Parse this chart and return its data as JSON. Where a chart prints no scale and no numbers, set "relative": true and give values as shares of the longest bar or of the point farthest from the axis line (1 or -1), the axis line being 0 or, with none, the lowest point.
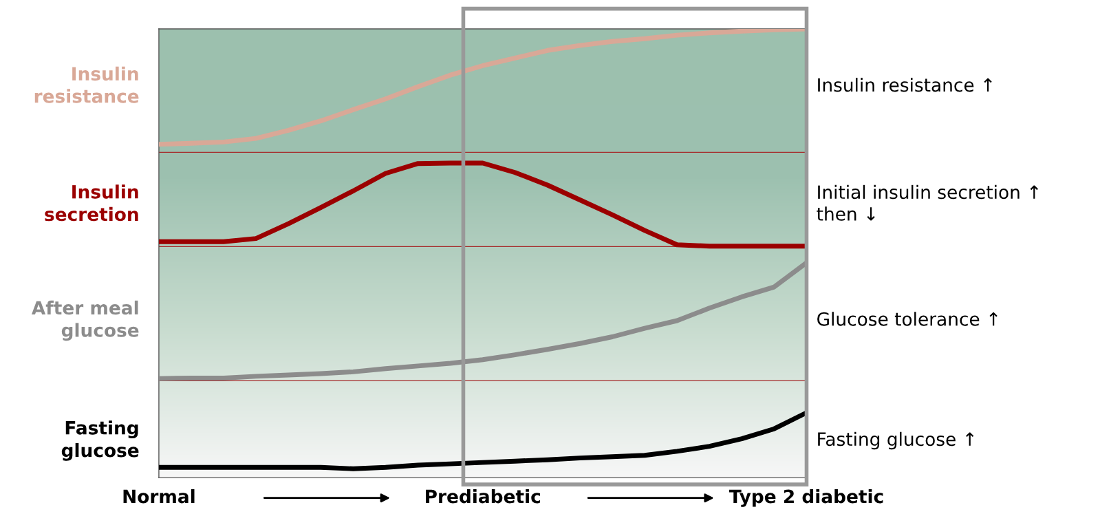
{
  "chart_data": {
    "type": "line",
    "relative": true,
    "categories": [
      "Normal",
      null,
      null,
      null,
      null,
      null,
      null,
      null,
      null,
      null,
      "Prediabetic",
      null,
      null,
      null,
      null,
      null,
      null,
      null,
      null,
      null,
      "Type 2 diabetic"
    ],
    "series": [
      {
        "name": "Insulin resistance",
        "color": "#d9a897",
        "values": [
          0.743,
          0.745,
          0.748,
          0.756,
          0.774,
          0.795,
          0.82,
          0.844,
          0.871,
          0.897,
          0.918,
          0.935,
          0.952,
          0.963,
          0.972,
          0.978,
          0.986,
          0.991,
          0.995,
          0.998,
          1.0
        ]
      },
      {
        "name": "Insulin secretion",
        "color": "#9b0000",
        "values": [
          0.526,
          0.526,
          0.526,
          0.533,
          0.566,
          0.602,
          0.639,
          0.678,
          0.7,
          0.701,
          0.701,
          0.68,
          0.652,
          0.619,
          0.586,
          0.551,
          0.519,
          0.516,
          0.516,
          0.516,
          0.516
        ]
      },
      {
        "name": "After meal glucose",
        "color": "#8c8c8c",
        "values": [
          0.221,
          0.222,
          0.222,
          0.226,
          0.229,
          0.232,
          0.236,
          0.243,
          0.249,
          0.255,
          0.263,
          0.274,
          0.286,
          0.299,
          0.314,
          0.333,
          0.35,
          0.378,
          0.403,
          0.425,
          0.479
        ]
      },
      {
        "name": "Fasting glucose",
        "color": "#000000",
        "values": [
          0.023,
          0.023,
          0.023,
          0.023,
          0.023,
          0.023,
          0.02,
          0.023,
          0.028,
          0.031,
          0.034,
          0.037,
          0.04,
          0.044,
          0.047,
          0.05,
          0.059,
          0.07,
          0.087,
          0.109,
          0.145
        ]
      }
    ],
    "ref_lines": [
      {
        "axis": "y",
        "value": 0.725,
        "color": "#a52a2a"
      },
      {
        "axis": "y",
        "value": 0.515,
        "color": "#a52a2a"
      },
      {
        "axis": "y",
        "value": 0.216,
        "color": "#a52a2a"
      }
    ],
    "annotations": [
      "Insulin resistance ↑",
      "Initial insulin secretion ↑\nthen ↓",
      "Glucose tolerance ↑",
      "Fasting glucose ↑"
    ],
    "grid": false,
    "legend": false,
    "marker": "none",
    "line_style": "solid"
  }
}
